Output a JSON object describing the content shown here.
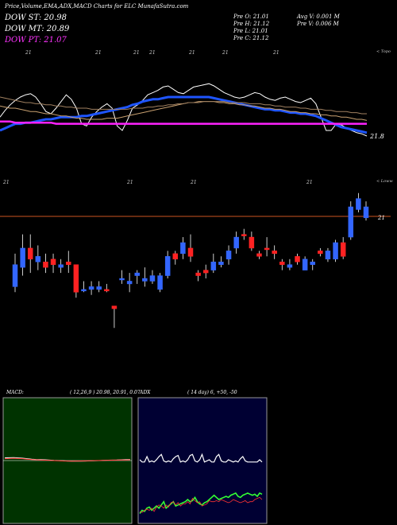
{
  "header": {
    "title": "Price,Volume,EMA,ADX,MACD Charts for ELC MunafaSutra.com",
    "dow_st": "DOW ST: 20.98",
    "dow_mt": "DOW MT: 20.89",
    "dow_pt": "DOW PT: 21.07",
    "prev_o": "Pre   O: 21.01",
    "prev_h": "Pre   H: 21.12",
    "prev_l": "Pre   L: 21.01",
    "prev_c": "Pre   C: 21.12",
    "avg_v": "Avg V: 0.001  M",
    "pre_v": "Pre   V: 0.006  M"
  },
  "colors": {
    "dow_st": "#ffffff",
    "dow_mt": "#ffffff",
    "dow_pt": "#ff33ff",
    "up_candle": "#3366ff",
    "down_candle": "#ff2222",
    "ema_short": "#1e55ff",
    "ema_flat": "#ff22ff",
    "ref_line": "#cc5522",
    "macd_bg": "#003300",
    "adx_bg": "#000033"
  },
  "ema_panel": {
    "top_labels": [
      "21",
      "21",
      "21",
      "21",
      "21",
      "21",
      "21"
    ],
    "bottom_labels": [
      "21",
      "21",
      "21",
      "21"
    ],
    "right_top_label": "< Topo",
    "right_bottom_label": "< Loww",
    "last_label": "21.8"
  },
  "price_panel": {
    "axis_label": "21"
  },
  "macd": {
    "title": "MACD:",
    "params": "( 12,26,9 ) 20.98,  20.91,  0.07"
  },
  "adx": {
    "title": "ADX",
    "params": "( 14  day) 6,  +50,  -50"
  },
  "chart_data": [
    {
      "type": "candlestick",
      "title": "Price candles",
      "ylabel": "",
      "ref_value": 21,
      "ylim": [
        20.55,
        21.2
      ],
      "candles": [
        {
          "o": 20.78,
          "h": 20.9,
          "l": 20.76,
          "c": 20.86,
          "dir": "up"
        },
        {
          "o": 20.92,
          "h": 20.97,
          "l": 20.82,
          "c": 20.85,
          "dir": "up"
        },
        {
          "o": 20.92,
          "h": 20.97,
          "l": 20.83,
          "c": 20.88,
          "dir": "down"
        },
        {
          "o": 20.89,
          "h": 20.93,
          "l": 20.84,
          "c": 20.87,
          "dir": "up"
        },
        {
          "o": 20.87,
          "h": 20.9,
          "l": 20.83,
          "c": 20.85,
          "dir": "down"
        },
        {
          "o": 20.88,
          "h": 20.9,
          "l": 20.83,
          "c": 20.86,
          "dir": "down"
        },
        {
          "o": 20.85,
          "h": 20.88,
          "l": 20.83,
          "c": 20.86,
          "dir": "up"
        },
        {
          "o": 20.86,
          "h": 20.91,
          "l": 20.83,
          "c": 20.87,
          "dir": "down"
        },
        {
          "o": 20.86,
          "h": 20.86,
          "l": 20.74,
          "c": 20.76,
          "dir": "down"
        },
        {
          "o": 20.77,
          "h": 20.8,
          "l": 20.76,
          "c": 20.77,
          "dir": "up"
        },
        {
          "o": 20.77,
          "h": 20.8,
          "l": 20.75,
          "c": 20.78,
          "dir": "up"
        },
        {
          "o": 20.77,
          "h": 20.8,
          "l": 20.76,
          "c": 20.78,
          "dir": "up"
        },
        {
          "o": 20.77,
          "h": 20.79,
          "l": 20.76,
          "c": 20.77,
          "dir": "down"
        },
        {
          "o": 20.71,
          "h": 20.71,
          "l": 20.63,
          "c": 20.7,
          "dir": "down"
        },
        {
          "o": 20.81,
          "h": 20.84,
          "l": 20.79,
          "c": 20.81,
          "dir": "up"
        },
        {
          "o": 20.79,
          "h": 20.83,
          "l": 20.76,
          "c": 20.8,
          "dir": "up"
        },
        {
          "o": 20.82,
          "h": 20.84,
          "l": 20.79,
          "c": 20.83,
          "dir": "up"
        },
        {
          "o": 20.8,
          "h": 20.85,
          "l": 20.78,
          "c": 20.81,
          "dir": "up"
        },
        {
          "o": 20.82,
          "h": 20.84,
          "l": 20.79,
          "c": 20.8,
          "dir": "up"
        },
        {
          "o": 20.77,
          "h": 20.83,
          "l": 20.76,
          "c": 20.82,
          "dir": "up"
        },
        {
          "o": 20.82,
          "h": 20.91,
          "l": 20.81,
          "c": 20.89,
          "dir": "up"
        },
        {
          "o": 20.88,
          "h": 20.91,
          "l": 20.86,
          "c": 20.9,
          "dir": "down"
        },
        {
          "o": 20.9,
          "h": 20.96,
          "l": 20.88,
          "c": 20.94,
          "dir": "up"
        },
        {
          "o": 20.92,
          "h": 20.97,
          "l": 20.87,
          "c": 20.89,
          "dir": "down"
        },
        {
          "o": 20.82,
          "h": 20.84,
          "l": 20.8,
          "c": 20.83,
          "dir": "down"
        },
        {
          "o": 20.83,
          "h": 20.86,
          "l": 20.81,
          "c": 20.84,
          "dir": "down"
        },
        {
          "o": 20.84,
          "h": 20.9,
          "l": 20.83,
          "c": 20.87,
          "dir": "up"
        },
        {
          "o": 20.86,
          "h": 20.89,
          "l": 20.85,
          "c": 20.87,
          "dir": "up"
        },
        {
          "o": 20.88,
          "h": 20.93,
          "l": 20.86,
          "c": 20.91,
          "dir": "up"
        },
        {
          "o": 20.92,
          "h": 20.98,
          "l": 20.9,
          "c": 20.96,
          "dir": "up"
        },
        {
          "o": 20.97,
          "h": 20.99,
          "l": 20.95,
          "c": 20.97,
          "dir": "down"
        },
        {
          "o": 20.96,
          "h": 20.98,
          "l": 20.91,
          "c": 20.92,
          "dir": "down"
        },
        {
          "o": 20.89,
          "h": 20.91,
          "l": 20.88,
          "c": 20.9,
          "dir": "down"
        },
        {
          "o": 20.92,
          "h": 20.96,
          "l": 20.89,
          "c": 20.92,
          "dir": "down"
        },
        {
          "o": 20.91,
          "h": 20.93,
          "l": 20.88,
          "c": 20.9,
          "dir": "down"
        },
        {
          "o": 20.86,
          "h": 20.88,
          "l": 20.84,
          "c": 20.87,
          "dir": "down"
        },
        {
          "o": 20.85,
          "h": 20.88,
          "l": 20.84,
          "c": 20.86,
          "dir": "up"
        },
        {
          "o": 20.87,
          "h": 20.9,
          "l": 20.86,
          "c": 20.89,
          "dir": "down"
        },
        {
          "o": 20.84,
          "h": 20.89,
          "l": 20.84,
          "c": 20.88,
          "dir": "up"
        },
        {
          "o": 20.86,
          "h": 20.88,
          "l": 20.84,
          "c": 20.87,
          "dir": "up"
        },
        {
          "o": 20.9,
          "h": 20.92,
          "l": 20.89,
          "c": 20.91,
          "dir": "down"
        },
        {
          "o": 20.88,
          "h": 20.92,
          "l": 20.87,
          "c": 20.91,
          "dir": "up"
        },
        {
          "o": 20.88,
          "h": 20.95,
          "l": 20.87,
          "c": 20.94,
          "dir": "up"
        },
        {
          "o": 20.94,
          "h": 20.96,
          "l": 20.88,
          "c": 20.89,
          "dir": "down"
        },
        {
          "o": 20.96,
          "h": 21.09,
          "l": 20.95,
          "c": 21.07,
          "dir": "up"
        },
        {
          "o": 21.06,
          "h": 21.12,
          "l": 21.05,
          "c": 21.1,
          "dir": "up"
        },
        {
          "o": 21.07,
          "h": 21.09,
          "l": 21.02,
          "c": 21.03,
          "dir": "up"
        }
      ]
    },
    {
      "type": "line",
      "title": "EMA",
      "ylim": [
        0,
        100
      ],
      "series": [
        {
          "values": [
            52,
            58,
            63,
            67,
            70,
            72,
            73,
            70,
            64,
            57,
            55,
            60,
            66,
            72,
            68,
            60,
            46,
            44,
            52,
            57,
            61,
            64,
            60,
            44,
            40,
            49,
            60,
            63,
            67,
            72,
            74,
            76,
            79,
            80,
            77,
            74,
            73,
            76,
            79,
            80,
            81,
            82,
            80,
            77,
            74,
            72,
            70,
            69,
            70,
            72,
            74,
            73,
            70,
            68,
            67,
            69,
            70,
            68,
            66,
            65,
            67,
            69,
            64,
            52,
            40,
            40,
            46,
            45,
            42,
            40,
            38,
            37,
            35
          ]
        },
        {
          "values": [
            40,
            42,
            44,
            46,
            46,
            47,
            47,
            48,
            49,
            50,
            50,
            51,
            52,
            52,
            52,
            52,
            53,
            53,
            54,
            55,
            56,
            57,
            58,
            59,
            60,
            61,
            63,
            64,
            66,
            67,
            68,
            68,
            69,
            70,
            70,
            70,
            70,
            70,
            70,
            70,
            70,
            70,
            69,
            68,
            67,
            66,
            65,
            64,
            63,
            62,
            61,
            60,
            59,
            59,
            58,
            58,
            57,
            56,
            56,
            55,
            55,
            54,
            53,
            51,
            49,
            47,
            45,
            43,
            42,
            41,
            40,
            39,
            38
          ]
        },
        {
          "values": [
            62,
            61,
            60,
            60,
            59,
            58,
            57,
            57,
            56,
            55,
            55,
            54,
            53,
            53,
            52,
            51,
            51,
            50,
            50,
            50,
            50,
            51,
            51,
            51,
            52,
            53,
            54,
            55,
            56,
            57,
            58,
            59,
            60,
            61,
            62,
            63,
            64,
            65,
            65,
            66,
            66,
            66,
            66,
            65,
            65,
            64,
            64,
            63,
            63,
            62,
            62,
            61,
            60,
            60,
            59,
            59,
            58,
            57,
            57,
            56,
            56,
            55,
            55,
            54,
            54,
            53,
            53,
            52,
            52,
            51,
            50,
            50,
            49
          ]
        },
        {
          "values": [
            70,
            69,
            68,
            67,
            66,
            65,
            65,
            64,
            64,
            63,
            63,
            62,
            62,
            61,
            61,
            60,
            60,
            60,
            59,
            59,
            59,
            59,
            59,
            59,
            59,
            59,
            60,
            60,
            60,
            61,
            61,
            62,
            62,
            63,
            63,
            64,
            64,
            65,
            65,
            65,
            66,
            66,
            66,
            66,
            66,
            65,
            65,
            65,
            65,
            64,
            64,
            64,
            63,
            63,
            62,
            62,
            61,
            61,
            61,
            60,
            60,
            59,
            59,
            59,
            58,
            58,
            57,
            57,
            57,
            56,
            56,
            55,
            55
          ]
        },
        {
          "values": [
            48,
            48,
            48,
            47,
            47,
            47,
            47,
            47,
            47,
            47,
            47,
            46,
            46,
            46,
            46,
            46,
            46,
            46,
            46,
            46,
            46,
            46,
            46,
            46,
            46,
            46,
            46,
            46,
            46,
            46,
            46,
            46,
            46,
            46,
            46,
            46,
            46,
            46,
            46,
            46,
            46,
            46,
            46,
            46,
            46,
            46,
            46,
            46,
            46,
            46,
            46,
            46,
            46,
            46,
            46,
            46,
            46,
            46,
            46,
            46,
            46,
            46,
            46,
            46,
            46,
            46,
            46,
            46,
            46,
            46,
            46,
            46,
            46
          ]
        }
      ]
    },
    {
      "type": "line",
      "title": "MACD",
      "ylim": [
        -1,
        1
      ],
      "series": [
        {
          "values": [
            0.28,
            0.3,
            0.32,
            0.28,
            0.25,
            0.2,
            0.15,
            0.12,
            0.1,
            0.08,
            0.05,
            0.02,
            0.0,
            -0.02,
            -0.05,
            -0.06,
            -0.07,
            -0.06,
            -0.05,
            -0.03,
            -0.02,
            0.0,
            0.02,
            0.04,
            0.05,
            0.06,
            0.08,
            0.1,
            0.12
          ]
        },
        {
          "values": [
            0.2,
            0.22,
            0.24,
            0.22,
            0.2,
            0.15,
            0.1,
            0.08,
            0.06,
            0.04,
            0.02,
            0.0,
            -0.02,
            -0.04,
            -0.05,
            -0.06,
            -0.05,
            -0.04,
            -0.03,
            -0.02,
            0.0,
            0.01,
            0.02,
            0.03,
            0.04,
            0.05,
            0.06,
            0.07,
            0.08
          ]
        }
      ]
    },
    {
      "type": "line",
      "title": "ADX",
      "ylim": [
        0,
        100
      ],
      "series": [
        {
          "values": [
            57,
            55,
            55,
            60,
            55,
            56,
            55,
            57,
            60,
            62,
            56,
            55,
            56,
            55,
            58,
            60,
            61,
            55,
            56,
            55,
            57,
            61,
            62,
            56,
            55,
            57,
            62,
            55,
            56,
            57,
            55,
            55,
            60,
            62,
            56,
            55,
            55,
            57,
            56,
            55,
            56,
            55,
            58,
            60,
            56,
            55,
            55,
            55,
            55,
            55,
            57,
            55
          ]
        },
        {
          "values": [
            7,
            10,
            9,
            12,
            13,
            10,
            12,
            14,
            12,
            15,
            18,
            12,
            14,
            16,
            18,
            14,
            15,
            16,
            17,
            18,
            20,
            18,
            19,
            22,
            18,
            16,
            15,
            17,
            18,
            20,
            22,
            24,
            22,
            20,
            21,
            22,
            23,
            22,
            24,
            25,
            26,
            23,
            22,
            24,
            25,
            26,
            25,
            24,
            25,
            23,
            26,
            25
          ]
        },
        {
          "values": [
            9,
            8,
            10,
            11,
            10,
            12,
            9,
            13,
            15,
            14,
            12,
            15,
            13,
            17,
            18,
            15,
            17,
            14,
            16,
            16,
            18,
            16,
            21,
            19,
            17,
            18,
            14,
            15,
            16,
            19,
            18,
            18,
            19,
            18,
            20,
            19,
            18,
            17,
            18,
            20,
            19,
            18,
            17,
            18,
            19,
            17,
            18,
            18,
            20,
            21,
            22,
            20
          ]
        }
      ]
    }
  ]
}
